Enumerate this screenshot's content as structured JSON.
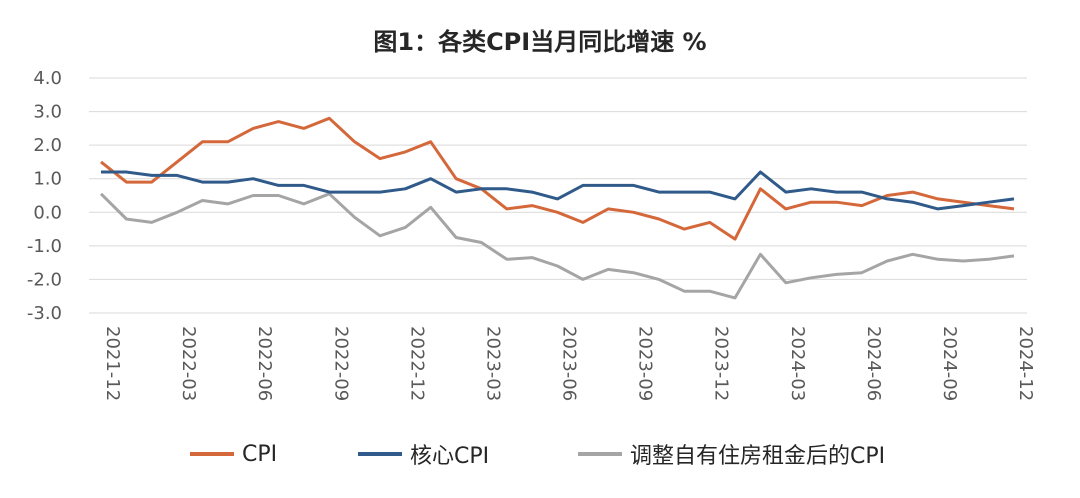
{
  "title": "图1：各类CPI当月同比增速 %",
  "chart_data": {
    "type": "line",
    "title": "图1：各类CPI当月同比增速 %",
    "ylim": [
      -3.0,
      4.0
    ],
    "yticks": [
      "4.0",
      "3.0",
      "2.0",
      "1.0",
      "0.0",
      "-1.0",
      "-2.0",
      "-3.0"
    ],
    "ytick_values": [
      4,
      3,
      2,
      1,
      0,
      -1,
      -2,
      -3
    ],
    "x": [
      "2021-12",
      "2022-01",
      "2022-02",
      "2022-03",
      "2022-04",
      "2022-05",
      "2022-06",
      "2022-07",
      "2022-08",
      "2022-09",
      "2022-10",
      "2022-11",
      "2022-12",
      "2023-01",
      "2023-02",
      "2023-03",
      "2023-04",
      "2023-05",
      "2023-06",
      "2023-07",
      "2023-08",
      "2023-09",
      "2023-10",
      "2023-11",
      "2023-12",
      "2024-01",
      "2024-02",
      "2024-03",
      "2024-04",
      "2024-05",
      "2024-06",
      "2024-07",
      "2024-08",
      "2024-09",
      "2024-10",
      "2024-11",
      "2024-12"
    ],
    "xtick_labels": [
      "2021-12",
      "2022-03",
      "2022-06",
      "2022-09",
      "2022-12",
      "2023-03",
      "2023-06",
      "2023-09",
      "2023-12",
      "2024-03",
      "2024-06",
      "2024-09",
      "2024-12"
    ],
    "xtick_index": [
      0,
      3,
      6,
      9,
      12,
      15,
      18,
      21,
      24,
      27,
      30,
      33,
      36
    ],
    "grid": true,
    "legend_position": "bottom",
    "series": [
      {
        "name": "CPI",
        "color": "#d4683a",
        "values": [
          1.5,
          0.9,
          0.9,
          1.5,
          2.1,
          2.1,
          2.5,
          2.7,
          2.5,
          2.8,
          2.1,
          1.6,
          1.8,
          2.1,
          1.0,
          0.7,
          0.1,
          0.2,
          0.0,
          -0.3,
          0.1,
          0.0,
          -0.2,
          -0.5,
          -0.3,
          -0.8,
          0.7,
          0.1,
          0.3,
          0.3,
          0.2,
          0.5,
          0.6,
          0.4,
          0.3,
          0.2,
          0.1
        ]
      },
      {
        "name": "核心CPI",
        "color": "#2f5a8a",
        "values": [
          1.2,
          1.2,
          1.1,
          1.1,
          0.9,
          0.9,
          1.0,
          0.8,
          0.8,
          0.6,
          0.6,
          0.6,
          0.7,
          1.0,
          0.6,
          0.7,
          0.7,
          0.6,
          0.4,
          0.8,
          0.8,
          0.8,
          0.6,
          0.6,
          0.6,
          0.4,
          1.2,
          0.6,
          0.7,
          0.6,
          0.6,
          0.4,
          0.3,
          0.1,
          0.2,
          0.3,
          0.4
        ]
      },
      {
        "name": "调整自有住房租金后的CPI",
        "color": "#a5a5a5",
        "values": [
          0.55,
          -0.2,
          -0.3,
          0.0,
          0.35,
          0.25,
          0.5,
          0.5,
          0.25,
          0.55,
          -0.15,
          -0.7,
          -0.45,
          0.15,
          -0.75,
          -0.9,
          -1.4,
          -1.35,
          -1.6,
          -2.0,
          -1.7,
          -1.8,
          -2.0,
          -2.35,
          -2.35,
          -2.55,
          -1.25,
          -2.1,
          -1.95,
          -1.85,
          -1.8,
          -1.45,
          -1.25,
          -1.4,
          -1.45,
          -1.4,
          -1.3
        ]
      }
    ]
  }
}
